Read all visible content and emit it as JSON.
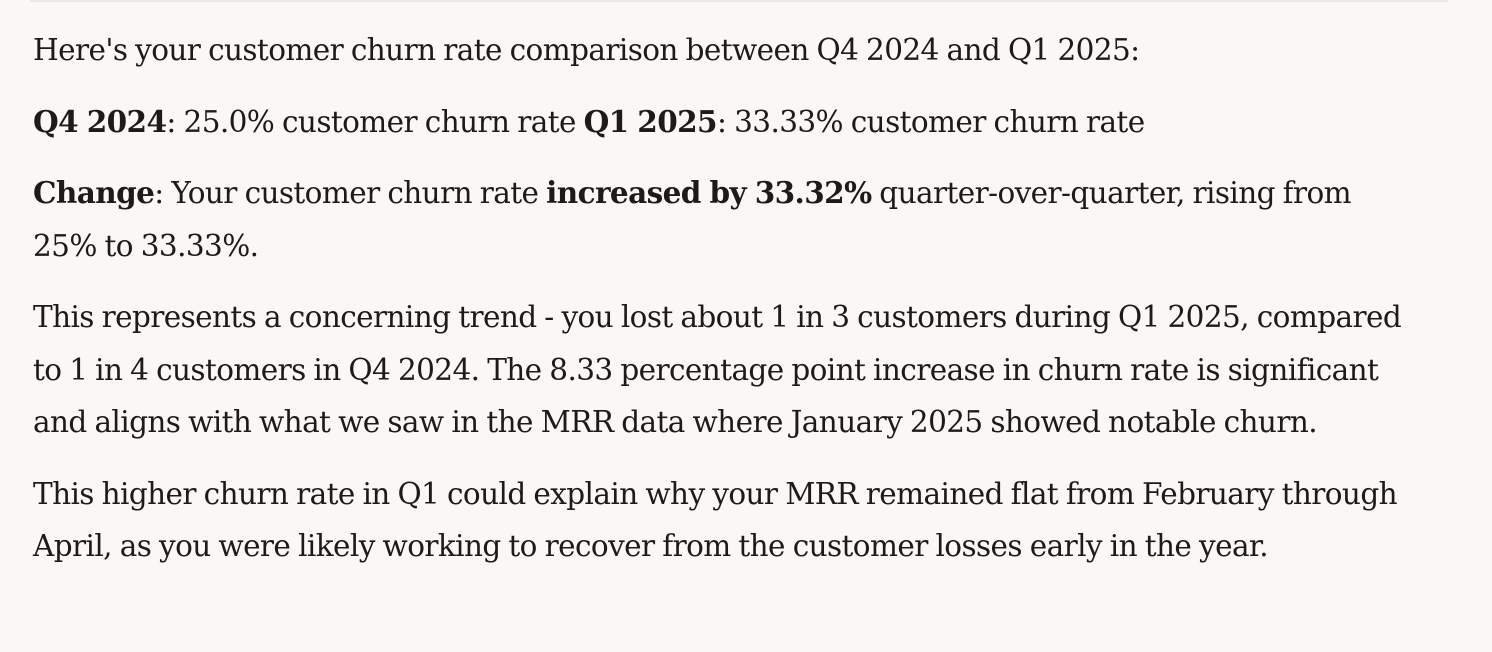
{
  "response": {
    "intro": "Here's your customer churn rate comparison between Q4 2024 and Q1 2025:",
    "rates": {
      "q4_label": "Q4 2024",
      "q4_text": ": 25.0% customer churn rate ",
      "q1_label": "Q1 2025",
      "q1_text": ": 33.33% customer churn rate"
    },
    "change": {
      "label": "Change",
      "text_before": ": Your customer churn rate ",
      "emphasis": "increased by 33.32%",
      "text_after": " quarter-over-quarter, rising from 25% to 33.33%."
    },
    "analysis": "This represents a concerning trend - you lost about 1 in 3 customers during Q1 2025, compared to 1 in 4 customers in Q4 2024. The 8.33 percentage point increase in churn rate is significant and aligns with what we saw in the MRR data where January 2025 showed notable churn.",
    "explanation": "This higher churn rate in Q1 could explain why your MRR remained flat from February through April, as you were likely working to recover from the customer losses early in the year."
  }
}
